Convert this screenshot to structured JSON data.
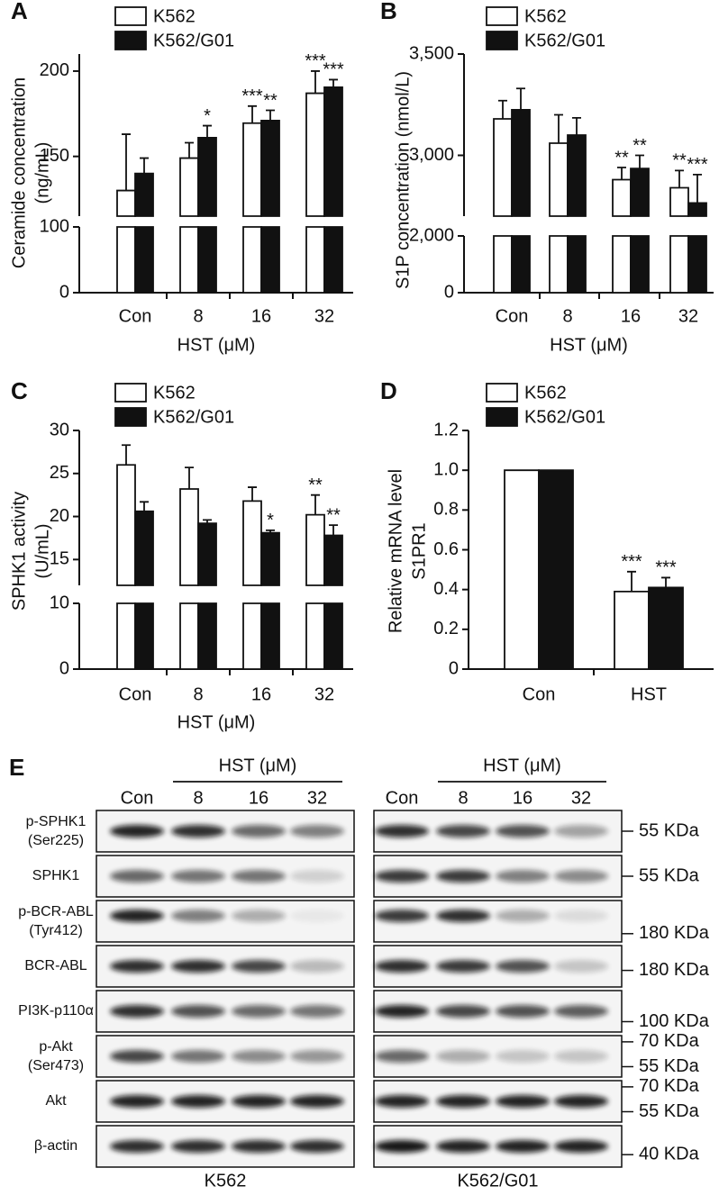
{
  "chart_data": [
    {
      "type": "bar",
      "panel_label": "A",
      "ylabel": [
        "Ceramide concentration",
        "(ng/mL)"
      ],
      "xlabel": "HST (μM)",
      "categories": [
        "Con",
        "8",
        "16",
        "32"
      ],
      "series": [
        {
          "name": "K562",
          "color": "#ffffff",
          "values": [
            130,
            149,
            169.5,
            187
          ],
          "errors": [
            33,
            9,
            10,
            13
          ],
          "annotations": [
            null,
            null,
            "***",
            "***"
          ]
        },
        {
          "name": "K562/G01",
          "color": "#111111",
          "values": [
            140,
            161,
            171,
            190.5
          ],
          "errors": [
            9,
            7,
            6,
            4.5
          ],
          "annotations": [
            null,
            "*",
            "**",
            "***"
          ]
        }
      ],
      "ylim": [
        0,
        210
      ],
      "ybreak": [
        100,
        115
      ],
      "yticks": [
        0,
        100,
        150,
        200
      ]
    },
    {
      "type": "bar",
      "panel_label": "B",
      "ylabel": [
        "S1P concentration (nmol/L)"
      ],
      "xlabel": "HST (μM)",
      "categories": [
        "Con",
        "8",
        "16",
        "32"
      ],
      "series": [
        {
          "name": "K562",
          "color": "#ffffff",
          "values": [
            3180,
            3060,
            2880,
            2840
          ],
          "errors": [
            90,
            140,
            60,
            85
          ],
          "annotations": [
            null,
            null,
            "**",
            "**"
          ]
        },
        {
          "name": "K562/G01",
          "color": "#111111",
          "values": [
            3225,
            3100,
            2935,
            2765
          ],
          "errors": [
            105,
            85,
            65,
            140
          ],
          "annotations": [
            null,
            null,
            "**",
            "***"
          ]
        }
      ],
      "ylim": [
        0,
        3500
      ],
      "ybreak": [
        2000,
        2700
      ],
      "yticks": [
        0,
        {
          "value": 2000,
          "label": "2,000"
        },
        {
          "value": 3000,
          "label": "3,000"
        },
        {
          "value": 3500,
          "label": "3,500"
        }
      ]
    },
    {
      "type": "bar",
      "panel_label": "C",
      "ylabel": [
        "SPHK1 activity",
        "(U/mL)"
      ],
      "xlabel": "HST (μM)",
      "categories": [
        "Con",
        "8",
        "16",
        "32"
      ],
      "series": [
        {
          "name": "K562",
          "color": "#ffffff",
          "values": [
            26.0,
            23.2,
            21.8,
            20.2
          ],
          "errors": [
            2.3,
            2.5,
            1.6,
            2.3
          ],
          "annotations": [
            null,
            null,
            null,
            "**"
          ]
        },
        {
          "name": "K562/G01",
          "color": "#111111",
          "values": [
            20.6,
            19.2,
            18.1,
            17.8
          ],
          "errors": [
            1.1,
            0.4,
            0.3,
            1.2
          ],
          "annotations": [
            null,
            null,
            "*",
            "**"
          ]
        }
      ],
      "ylim": [
        0,
        30
      ],
      "ybreak": [
        10,
        12
      ],
      "yticks": [
        0,
        10,
        15,
        20,
        25,
        30
      ]
    },
    {
      "type": "bar",
      "panel_label": "D",
      "ylabel": [
        "Relative mRNA level",
        "S1PR1"
      ],
      "categories": [
        "Con",
        "HST"
      ],
      "series": [
        {
          "name": "K562",
          "color": "#ffffff",
          "values": [
            1,
            0.39
          ],
          "errors": [
            null,
            0.1
          ],
          "annotations": [
            null,
            "***"
          ]
        },
        {
          "name": "K562/G01",
          "color": "#111111",
          "values": [
            1,
            0.41
          ],
          "errors": [
            null,
            0.05
          ],
          "annotations": [
            null,
            "***"
          ]
        }
      ],
      "ylim": [
        0,
        1.2
      ],
      "yticks": [
        0,
        0.2,
        0.4,
        0.6,
        0.8,
        {
          "value": 1,
          "label": "1.0"
        },
        1.2
      ]
    }
  ],
  "blot": {
    "panel_label": "E",
    "header": "HST (μM)",
    "lanes": [
      "Con",
      "8",
      "16",
      "32"
    ],
    "blocks": [
      "K562",
      "K562/G01"
    ],
    "rows": [
      {
        "label": [
          "p-SPHK1",
          "(Ser225)"
        ],
        "markers": [
          "55 KDa"
        ]
      },
      {
        "label": [
          "SPHK1"
        ],
        "markers": [
          "55 KDa"
        ]
      },
      {
        "label": [
          "p-BCR-ABL",
          "(Tyr412)"
        ],
        "markers": [
          "180 KDa"
        ]
      },
      {
        "label": [
          "BCR-ABL"
        ],
        "markers": [
          "180 KDa"
        ]
      },
      {
        "label": [
          "PI3K-p110α"
        ],
        "markers": [
          "100 KDa"
        ]
      },
      {
        "label": [
          "p-Akt",
          "(Ser473)"
        ],
        "markers": [
          "70 KDa",
          "55 KDa"
        ]
      },
      {
        "label": [
          "Akt"
        ],
        "markers": [
          "70 KDa",
          "55 KDa"
        ]
      },
      {
        "label": [
          "β-actin"
        ],
        "markers": [
          "40 KDa"
        ]
      }
    ]
  }
}
